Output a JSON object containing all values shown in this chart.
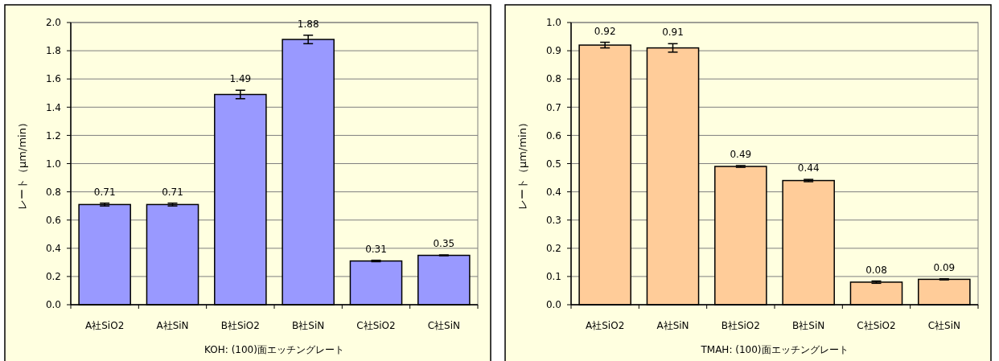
{
  "chart_data": [
    {
      "type": "bar",
      "xlabel": "KOH: (100)面エッチングレート",
      "ylabel": "レート（μm/min）",
      "categories": [
        "A社SiO2",
        "A社SiN",
        "B社SiO2",
        "B社SiN",
        "C社SiO2",
        "C社SiN"
      ],
      "values": [
        0.71,
        0.71,
        1.49,
        1.88,
        0.31,
        0.35
      ],
      "errors": [
        0.01,
        0.01,
        0.03,
        0.03,
        0.005,
        0.003
      ],
      "color": "#9999ff",
      "ylim": [
        0,
        2
      ],
      "yticks": [
        {
          "value": 0,
          "label": "0.0"
        },
        0.2,
        0.4,
        0.6,
        0.8,
        {
          "value": 1,
          "label": "1.0"
        },
        1.2,
        1.4,
        1.6,
        1.8,
        {
          "value": 2,
          "label": "2.0"
        }
      ],
      "grid": "y",
      "data_labels": true
    },
    {
      "type": "bar",
      "xlabel": "TMAH: (100)面エッチングレート",
      "ylabel": "レート（μm/min）",
      "categories": [
        "A社SiO2",
        "A社SiN",
        "B社SiO2",
        "B社SiN",
        "C社SiO2",
        "C社SiN"
      ],
      "values": [
        0.92,
        0.91,
        0.49,
        0.44,
        0.08,
        0.09
      ],
      "errors": [
        0.01,
        0.015,
        0.003,
        0.004,
        0.004,
        0.002
      ],
      "color": "#ffcc99",
      "ylim": [
        0,
        1
      ],
      "yticks": [
        {
          "value": 0,
          "label": "0.0"
        },
        0.1,
        0.2,
        0.3,
        0.4,
        0.5,
        0.6,
        0.7,
        0.8,
        0.9,
        {
          "value": 1,
          "label": "1.0"
        }
      ],
      "grid": "y",
      "data_labels": true
    }
  ]
}
